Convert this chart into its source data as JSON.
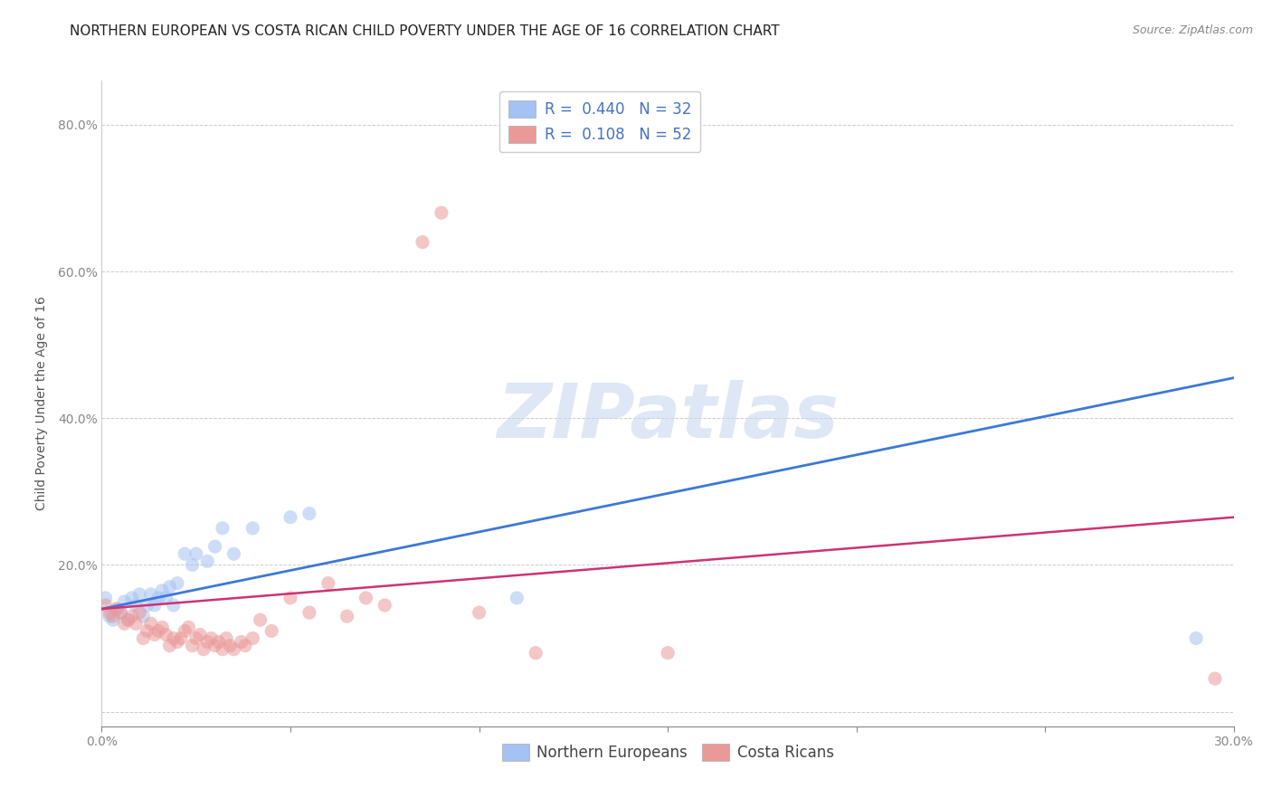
{
  "title": "NORTHERN EUROPEAN VS COSTA RICAN CHILD POVERTY UNDER THE AGE OF 16 CORRELATION CHART",
  "source": "Source: ZipAtlas.com",
  "ylabel": "Child Poverty Under the Age of 16",
  "xlabel": "",
  "xlim": [
    0.0,
    0.3
  ],
  "ylim": [
    -0.02,
    0.86
  ],
  "xticks": [
    0.0,
    0.05,
    0.1,
    0.15,
    0.2,
    0.25,
    0.3
  ],
  "yticks": [
    0.0,
    0.2,
    0.4,
    0.6,
    0.8
  ],
  "xtick_labels": [
    "0.0%",
    "",
    "",
    "",
    "",
    "",
    "30.0%"
  ],
  "ytick_labels": [
    "",
    "20.0%",
    "40.0%",
    "60.0%",
    "80.0%"
  ],
  "series1_color": "#a4c2f4",
  "series2_color": "#ea9999",
  "line1_color": "#3c78d8",
  "line2_color": "#cc3377",
  "background_color": "#ffffff",
  "watermark": "ZIPatlas",
  "northern_europeans": [
    [
      0.001,
      0.155
    ],
    [
      0.002,
      0.13
    ],
    [
      0.003,
      0.125
    ],
    [
      0.004,
      0.14
    ],
    [
      0.005,
      0.135
    ],
    [
      0.006,
      0.15
    ],
    [
      0.007,
      0.125
    ],
    [
      0.008,
      0.155
    ],
    [
      0.009,
      0.145
    ],
    [
      0.01,
      0.16
    ],
    [
      0.011,
      0.13
    ],
    [
      0.012,
      0.145
    ],
    [
      0.013,
      0.16
    ],
    [
      0.014,
      0.145
    ],
    [
      0.015,
      0.155
    ],
    [
      0.016,
      0.165
    ],
    [
      0.017,
      0.155
    ],
    [
      0.018,
      0.17
    ],
    [
      0.019,
      0.145
    ],
    [
      0.02,
      0.175
    ],
    [
      0.022,
      0.215
    ],
    [
      0.024,
      0.2
    ],
    [
      0.025,
      0.215
    ],
    [
      0.028,
      0.205
    ],
    [
      0.03,
      0.225
    ],
    [
      0.032,
      0.25
    ],
    [
      0.035,
      0.215
    ],
    [
      0.04,
      0.25
    ],
    [
      0.05,
      0.265
    ],
    [
      0.055,
      0.27
    ],
    [
      0.11,
      0.155
    ],
    [
      0.29,
      0.1
    ]
  ],
  "costa_ricans": [
    [
      0.001,
      0.145
    ],
    [
      0.002,
      0.135
    ],
    [
      0.003,
      0.13
    ],
    [
      0.004,
      0.14
    ],
    [
      0.005,
      0.135
    ],
    [
      0.006,
      0.12
    ],
    [
      0.007,
      0.125
    ],
    [
      0.008,
      0.13
    ],
    [
      0.009,
      0.12
    ],
    [
      0.01,
      0.135
    ],
    [
      0.011,
      0.1
    ],
    [
      0.012,
      0.11
    ],
    [
      0.013,
      0.12
    ],
    [
      0.014,
      0.105
    ],
    [
      0.015,
      0.11
    ],
    [
      0.016,
      0.115
    ],
    [
      0.017,
      0.105
    ],
    [
      0.018,
      0.09
    ],
    [
      0.019,
      0.1
    ],
    [
      0.02,
      0.095
    ],
    [
      0.021,
      0.1
    ],
    [
      0.022,
      0.11
    ],
    [
      0.023,
      0.115
    ],
    [
      0.024,
      0.09
    ],
    [
      0.025,
      0.1
    ],
    [
      0.026,
      0.105
    ],
    [
      0.027,
      0.085
    ],
    [
      0.028,
      0.095
    ],
    [
      0.029,
      0.1
    ],
    [
      0.03,
      0.09
    ],
    [
      0.031,
      0.095
    ],
    [
      0.032,
      0.085
    ],
    [
      0.033,
      0.1
    ],
    [
      0.034,
      0.09
    ],
    [
      0.035,
      0.085
    ],
    [
      0.037,
      0.095
    ],
    [
      0.038,
      0.09
    ],
    [
      0.04,
      0.1
    ],
    [
      0.042,
      0.125
    ],
    [
      0.045,
      0.11
    ],
    [
      0.05,
      0.155
    ],
    [
      0.055,
      0.135
    ],
    [
      0.06,
      0.175
    ],
    [
      0.065,
      0.13
    ],
    [
      0.07,
      0.155
    ],
    [
      0.075,
      0.145
    ],
    [
      0.085,
      0.64
    ],
    [
      0.09,
      0.68
    ],
    [
      0.1,
      0.135
    ],
    [
      0.115,
      0.08
    ],
    [
      0.15,
      0.08
    ],
    [
      0.295,
      0.045
    ]
  ],
  "title_fontsize": 11,
  "axis_label_fontsize": 10,
  "tick_fontsize": 10,
  "legend_fontsize": 12,
  "source_fontsize": 9,
  "marker_size": 120,
  "marker_alpha": 0.55
}
